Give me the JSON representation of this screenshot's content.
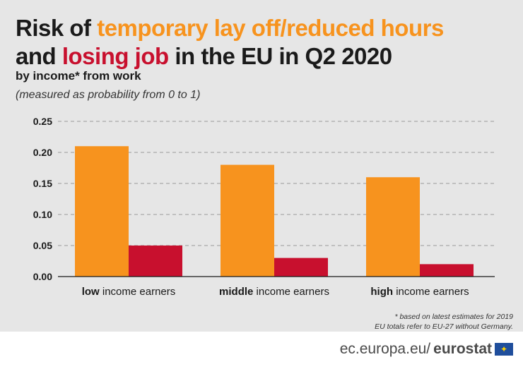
{
  "title": {
    "line1_prefix": "Risk of ",
    "line1_highlight": "temporary lay off/reduced hours",
    "line2_prefix": "and ",
    "line2_highlight": "losing job",
    "line2_suffix": " in the EU in Q2 2020"
  },
  "subtitle": "by income* from work",
  "measure_note": "(measured as probability from 0 to 1)",
  "colors": {
    "orange": "#f7931e",
    "red": "#c8102e",
    "background": "#e6e6e6",
    "grid": "#9a9a9a"
  },
  "chart_data": {
    "type": "bar",
    "categories": [
      "low",
      "middle",
      "high"
    ],
    "category_labels": [
      {
        "bold": "low",
        "rest": " income earners"
      },
      {
        "bold": "middle",
        "rest": " income earners"
      },
      {
        "bold": "high",
        "rest": " income earners"
      }
    ],
    "series": [
      {
        "color": "#f7931e",
        "values": [
          0.21,
          0.18,
          0.16
        ]
      },
      {
        "color": "#c8102e",
        "values": [
          0.05,
          0.03,
          0.02
        ]
      }
    ],
    "ylim": [
      0,
      0.25
    ],
    "yticks": [
      "0.00",
      "0.05",
      "0.10",
      "0.15",
      "0.20",
      "0.25"
    ],
    "grid": true
  },
  "footnote": {
    "line1": "* based on latest estimates for 2019",
    "line2": "EU totals refer to EU-27 without Germany."
  },
  "footer": {
    "domain": "ec.europa.eu/",
    "brand": "eurostat",
    "flag_icon": "eu-flag-icon"
  }
}
